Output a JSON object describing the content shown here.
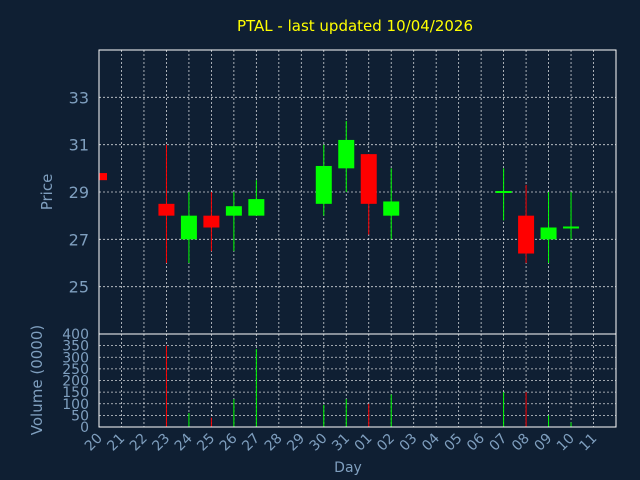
{
  "chart_data": {
    "title": "PTAL - last updated 10/04/2026",
    "colors": {
      "background": "#0f1f33",
      "frame": "#ffffff",
      "grid": "#ffffff",
      "title": "#ffff00",
      "axis_text": "#7f9fbf",
      "up": "#00ff00",
      "down": "#ff0000"
    },
    "price_panel": {
      "type": "candlestick",
      "ylabel": "Price",
      "ylim": [
        23.0,
        35.0
      ],
      "yticks": [
        25,
        27,
        29,
        31,
        33
      ]
    },
    "volume_panel": {
      "type": "bar",
      "ylabel": "Volume (0000)",
      "ylim": [
        0,
        400
      ],
      "yticks": [
        0,
        50,
        100,
        150,
        200,
        250,
        300,
        350,
        400
      ]
    },
    "xlabel": "Day",
    "x_ticks": [
      "20",
      "21",
      "22",
      "23",
      "24",
      "25",
      "26",
      "27",
      "28",
      "29",
      "30",
      "31",
      "01",
      "02",
      "03",
      "04",
      "05",
      "06",
      "07",
      "08",
      "09",
      "10",
      "11"
    ],
    "candles": [
      {
        "day": "20",
        "open": 29.8,
        "high": 29.8,
        "low": 29.5,
        "close": 29.5,
        "volume": 0
      },
      {
        "day": "23",
        "open": 28.5,
        "high": 31.0,
        "low": 26.0,
        "close": 28.0,
        "volume": 350
      },
      {
        "day": "24",
        "open": 27.0,
        "high": 29.0,
        "low": 26.0,
        "close": 28.0,
        "volume": 60
      },
      {
        "day": "25",
        "open": 28.0,
        "high": 29.0,
        "low": 26.5,
        "close": 27.5,
        "volume": 40
      },
      {
        "day": "26",
        "open": 28.0,
        "high": 29.0,
        "low": 26.5,
        "close": 28.4,
        "volume": 120
      },
      {
        "day": "27",
        "open": 28.0,
        "high": 29.5,
        "low": 28.0,
        "close": 28.7,
        "volume": 335
      },
      {
        "day": "30",
        "open": 28.5,
        "high": 31.0,
        "low": 28.0,
        "close": 30.1,
        "volume": 95
      },
      {
        "day": "31",
        "open": 30.0,
        "high": 32.0,
        "low": 29.0,
        "close": 31.2,
        "volume": 120
      },
      {
        "day": "01",
        "open": 30.6,
        "high": 30.6,
        "low": 27.2,
        "close": 28.5,
        "volume": 100
      },
      {
        "day": "02",
        "open": 28.0,
        "high": 30.0,
        "low": 27.0,
        "close": 28.6,
        "volume": 140
      },
      {
        "day": "07",
        "open": 29.0,
        "high": 30.0,
        "low": 27.8,
        "close": 29.0,
        "volume": 150
      },
      {
        "day": "08",
        "open": 28.0,
        "high": 29.3,
        "low": 26.0,
        "close": 26.4,
        "volume": 150
      },
      {
        "day": "09",
        "open": 27.0,
        "high": 29.0,
        "low": 26.0,
        "close": 27.5,
        "volume": 50
      },
      {
        "day": "10",
        "open": 27.5,
        "high": 29.0,
        "low": 27.0,
        "close": 27.5,
        "volume": 20
      }
    ]
  }
}
